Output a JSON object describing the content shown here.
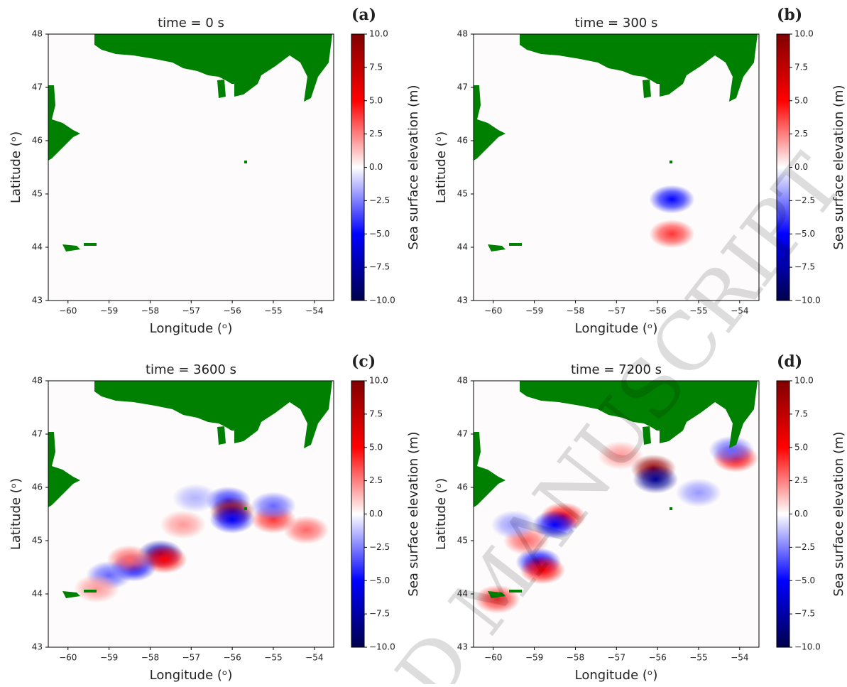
{
  "watermark": "D MANUSCRIPT",
  "chart_data": [
    {
      "type": "heatmap",
      "panel_label": "(a)",
      "title": "time = 0 s",
      "xlabel": "Longitude (ᵒ)",
      "ylabel": "Latitude (ᵒ)",
      "colorbar_label": "Sea surface elevation (m)",
      "xlim": [
        -60.48,
        -53.53
      ],
      "ylim": [
        43,
        48
      ],
      "xticks": [
        {
          "value": -60,
          "label": "−60"
        },
        {
          "value": -59,
          "label": "−59"
        },
        {
          "value": -58,
          "label": "−58"
        },
        {
          "value": -57,
          "label": "−57"
        },
        {
          "value": -56,
          "label": "−56"
        },
        {
          "value": -55,
          "label": "−55"
        },
        {
          "value": -54,
          "label": "−54"
        }
      ],
      "yticks": [
        43,
        44,
        45,
        46,
        47,
        48
      ],
      "clim": [
        -10,
        10
      ],
      "cticks": [
        {
          "value": -10,
          "label": "−10.0"
        },
        {
          "value": -7.5,
          "label": "−7.5"
        },
        {
          "value": -5,
          "label": "−5.0"
        },
        {
          "value": -2.5,
          "label": "−2.5"
        },
        {
          "value": 0,
          "label": "0.0"
        },
        {
          "value": 2.5,
          "label": "2.5"
        },
        {
          "value": 5,
          "label": "5.0"
        },
        {
          "value": 7.5,
          "label": "7.5"
        },
        {
          "value": 10,
          "label": "10.0"
        }
      ],
      "cmap": [
        "#00004c",
        "#0000ff",
        "#ffffff",
        "#ff0000",
        "#800000"
      ],
      "land_color": "#008000",
      "x": [],
      "y": [],
      "values": []
    },
    {
      "type": "heatmap",
      "panel_label": "(b)",
      "title": "time = 300 s",
      "xlabel": "Longitude (ᵒ)",
      "ylabel": "Latitude (ᵒ)",
      "colorbar_label": "Sea surface elevation (m)",
      "xlim": [
        -60.48,
        -53.53
      ],
      "ylim": [
        43,
        48
      ],
      "xticks": [
        {
          "value": -60,
          "label": "−60"
        },
        {
          "value": -59,
          "label": "−59"
        },
        {
          "value": -58,
          "label": "−58"
        },
        {
          "value": -57,
          "label": "−57"
        },
        {
          "value": -56,
          "label": "−56"
        },
        {
          "value": -55,
          "label": "−55"
        },
        {
          "value": -54,
          "label": "−54"
        }
      ],
      "yticks": [
        43,
        44,
        45,
        46,
        47,
        48
      ],
      "clim": [
        -10,
        10
      ],
      "cticks": [
        {
          "value": -10,
          "label": "−10.0"
        },
        {
          "value": -7.5,
          "label": "−7.5"
        },
        {
          "value": -5,
          "label": "−5.0"
        },
        {
          "value": -2.5,
          "label": "−2.5"
        },
        {
          "value": 0,
          "label": "0.0"
        },
        {
          "value": 2.5,
          "label": "2.5"
        },
        {
          "value": 5,
          "label": "5.0"
        },
        {
          "value": 7.5,
          "label": "7.5"
        },
        {
          "value": 10,
          "label": "10.0"
        }
      ],
      "cmap": [
        "#00004c",
        "#0000ff",
        "#ffffff",
        "#ff0000",
        "#800000"
      ],
      "land_color": "#008000",
      "x": [
        -55.65,
        -55.65
      ],
      "y": [
        44.9,
        44.25
      ],
      "values": [
        -5,
        4
      ]
    },
    {
      "type": "heatmap",
      "panel_label": "(c)",
      "title": "time = 3600 s",
      "xlabel": "Longitude (ᵒ)",
      "ylabel": "Latitude (ᵒ)",
      "colorbar_label": "Sea surface elevation (m)",
      "xlim": [
        -60.48,
        -53.53
      ],
      "ylim": [
        43,
        48
      ],
      "xticks": [
        {
          "value": -60,
          "label": "−60"
        },
        {
          "value": -59,
          "label": "−59"
        },
        {
          "value": -58,
          "label": "−58"
        },
        {
          "value": -57,
          "label": "−57"
        },
        {
          "value": -56,
          "label": "−56"
        },
        {
          "value": -55,
          "label": "−55"
        },
        {
          "value": -54,
          "label": "−54"
        }
      ],
      "yticks": [
        43,
        44,
        45,
        46,
        47,
        48
      ],
      "clim": [
        -10,
        10
      ],
      "cticks": [
        {
          "value": -10,
          "label": "−10.0"
        },
        {
          "value": -7.5,
          "label": "−7.5"
        },
        {
          "value": -5,
          "label": "−5.0"
        },
        {
          "value": -2.5,
          "label": "−2.5"
        },
        {
          "value": 0,
          "label": "0.0"
        },
        {
          "value": 2.5,
          "label": "2.5"
        },
        {
          "value": 5,
          "label": "5.0"
        },
        {
          "value": 7.5,
          "label": "7.5"
        },
        {
          "value": 10,
          "label": "10.0"
        }
      ],
      "cmap": [
        "#00004c",
        "#0000ff",
        "#ffffff",
        "#ff0000",
        "#800000"
      ],
      "land_color": "#008000",
      "x": [
        -56.1,
        -56,
        -56,
        -55,
        -55,
        -57.2,
        -57.75,
        -57.65,
        -58.4,
        -58.5,
        -59,
        -59.3,
        -56.9,
        -54.2
      ],
      "y": [
        45.75,
        45.55,
        45.4,
        45.4,
        45.65,
        45.3,
        44.75,
        44.65,
        44.5,
        44.65,
        44.35,
        44.1,
        45.8,
        45.2
      ],
      "values": [
        -4,
        9,
        -5,
        4,
        -3,
        2,
        -7,
        5,
        -5,
        3,
        -3,
        2,
        -1.5,
        3
      ]
    },
    {
      "type": "heatmap",
      "panel_label": "(d)",
      "title": "time = 7200 s",
      "xlabel": "Longitude (ᵒ)",
      "ylabel": "Latitude (ᵒ)",
      "colorbar_label": "Sea surface elevation (m)",
      "xlim": [
        -60.48,
        -53.53
      ],
      "ylim": [
        43,
        48
      ],
      "xticks": [
        {
          "value": -60,
          "label": "−60"
        },
        {
          "value": -59,
          "label": "−59"
        },
        {
          "value": -58,
          "label": "−58"
        },
        {
          "value": -57,
          "label": "−57"
        },
        {
          "value": -56,
          "label": "−56"
        },
        {
          "value": -55,
          "label": "−55"
        },
        {
          "value": -54,
          "label": "−54"
        }
      ],
      "yticks": [
        43,
        44,
        45,
        46,
        47,
        48
      ],
      "clim": [
        -10,
        10
      ],
      "cticks": [
        {
          "value": -10,
          "label": "−10.0"
        },
        {
          "value": -7.5,
          "label": "−7.5"
        },
        {
          "value": -5,
          "label": "−5.0"
        },
        {
          "value": -2.5,
          "label": "−2.5"
        },
        {
          "value": 0,
          "label": "0.0"
        },
        {
          "value": 2.5,
          "label": "2.5"
        },
        {
          "value": 5,
          "label": "5.0"
        },
        {
          "value": 7.5,
          "label": "7.5"
        },
        {
          "value": 10,
          "label": "10.0"
        }
      ],
      "cmap": [
        "#00004c",
        "#0000ff",
        "#ffffff",
        "#ff0000",
        "#800000"
      ],
      "land_color": "#008000",
      "x": [
        -56.1,
        -56.05,
        -54.1,
        -54.2,
        -58.3,
        -58.5,
        -58.9,
        -58.8,
        -59.2,
        -59.9,
        -56.9,
        -55,
        -59.5
      ],
      "y": [
        46.35,
        46.15,
        46.55,
        46.7,
        45.45,
        45.3,
        44.6,
        44.45,
        45,
        43.9,
        46.6,
        45.9,
        45.3
      ],
      "values": [
        9,
        -8,
        5,
        -3,
        5,
        -5,
        -5,
        5,
        3,
        4,
        2,
        -2,
        -2
      ]
    }
  ]
}
